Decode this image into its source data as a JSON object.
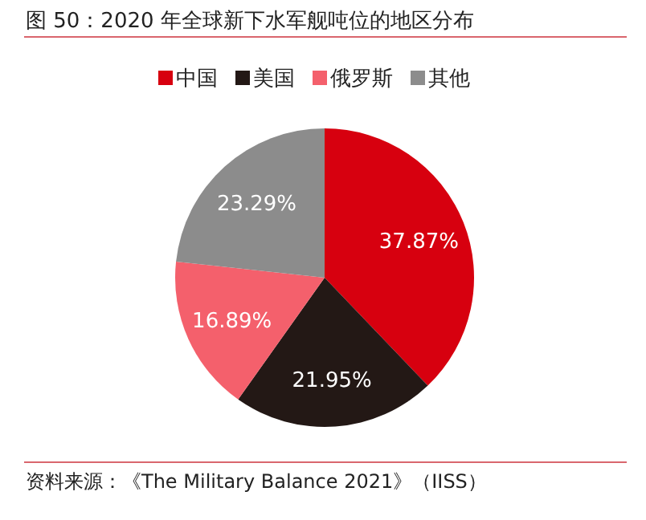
{
  "chart_data": {
    "type": "pie",
    "title": "图 50：2020 年全球新下水军舰吨位的地区分布",
    "categories": [
      "中国",
      "美国",
      "俄罗斯",
      "其他"
    ],
    "values": [
      37.87,
      21.95,
      16.89,
      23.29
    ],
    "colors": [
      "#d7000f",
      "#231815",
      "#f4606c",
      "#8c8c8c"
    ],
    "value_labels": [
      "37.87%",
      "21.95%",
      "16.89%",
      "23.29%"
    ],
    "legend": "top",
    "annotations": [
      "资料来源：《The Military Balance 2021》（IISS）"
    ]
  }
}
